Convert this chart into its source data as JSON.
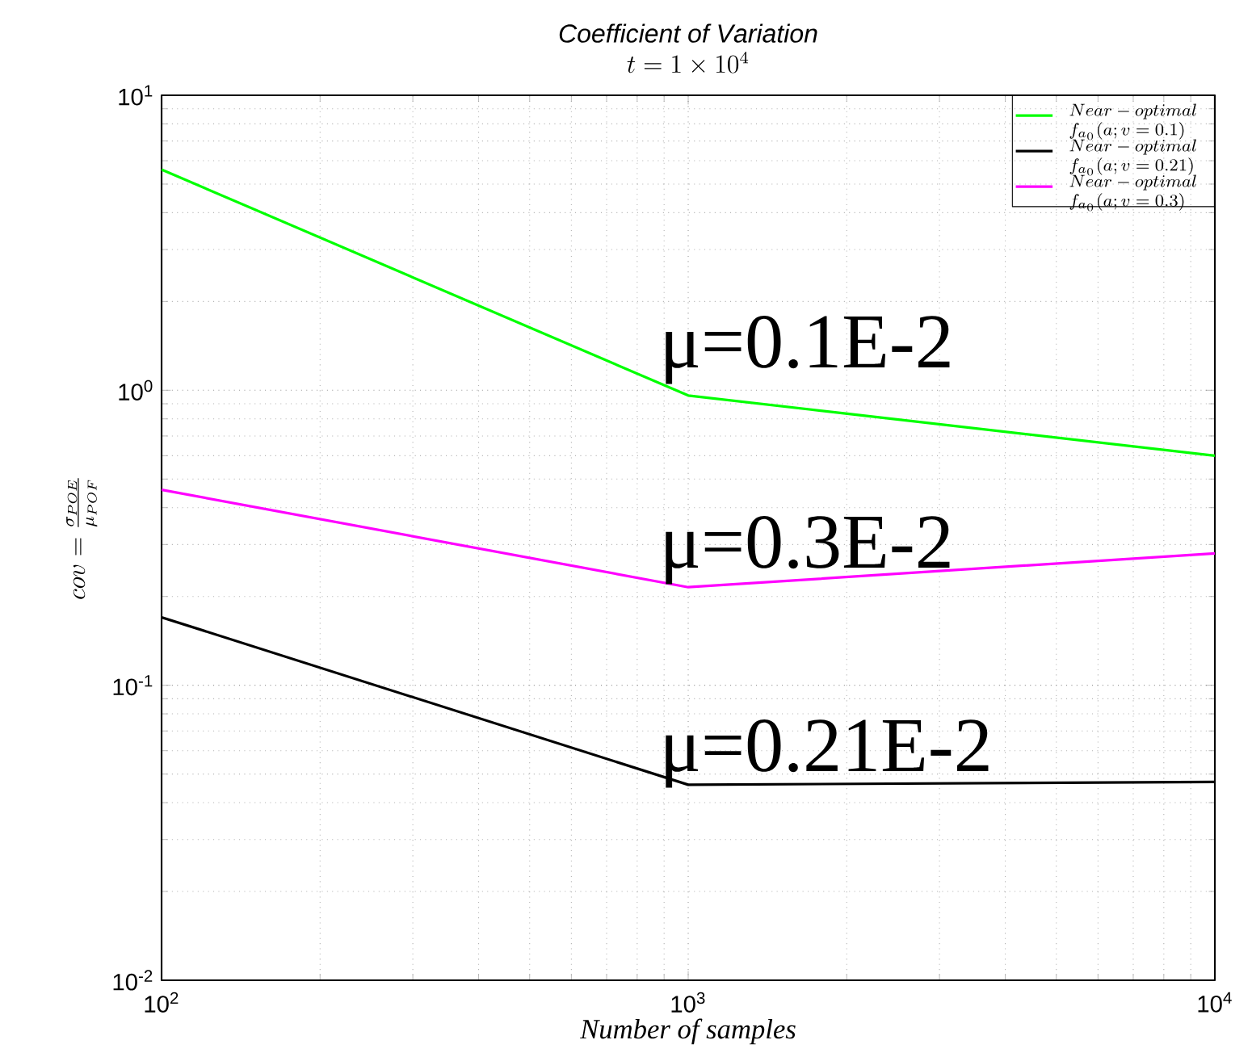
{
  "chart_data": {
    "type": "line",
    "title": "Coefficient of Variation",
    "subtitle": "t = 1 \\times 10^{4}",
    "xlabel": "Number of samples",
    "ylabel": "cov = \\frac{\\sigma_{POE}}{\\mu_{POF}}",
    "x": [
      100,
      1000,
      10000
    ],
    "series": [
      {
        "name": "\\begin{array}{l}Near-optimal\\\\ f_{a_0}(a;v=0.1)\\end{array}",
        "color": "#00ff00",
        "values": [
          5.6,
          0.96,
          0.6
        ]
      },
      {
        "name": "\\begin{array}{l}Near-optimal\\\\ f_{a_0}(a;v=0.21)\\end{array}",
        "color": "#000000",
        "values": [
          0.17,
          0.046,
          0.047
        ]
      },
      {
        "name": "\\begin{array}{l}Near-optimal\\\\ f_{a_0}(a;v=0.3)\\end{array}",
        "color": "#ff00ff",
        "values": [
          0.46,
          0.215,
          0.28
        ]
      }
    ],
    "annotations": [
      "μ=0.1E-2",
      "μ=0.3E-2",
      "μ=0.21E-2"
    ],
    "xlim": [
      100,
      10000
    ],
    "ylim": [
      0.01,
      10
    ],
    "xticks": [
      {
        "value": 100,
        "label": "10$^{2}$"
      },
      {
        "value": 1000,
        "label": "10$^{3}$"
      },
      {
        "value": 10000,
        "label": "10$^{4}$"
      }
    ],
    "yticks": [
      {
        "value": 0.01,
        "label": "10$^{-2}$"
      },
      {
        "value": 0.1,
        "label": "10$^{-1}$"
      },
      {
        "value": 1,
        "label": "10$^{0}$"
      },
      {
        "value": 10,
        "label": "10$^{1}$"
      }
    ],
    "log": "xy",
    "grid": true,
    "legend": "top right",
    "line_style": "solid",
    "marker": "none"
  }
}
